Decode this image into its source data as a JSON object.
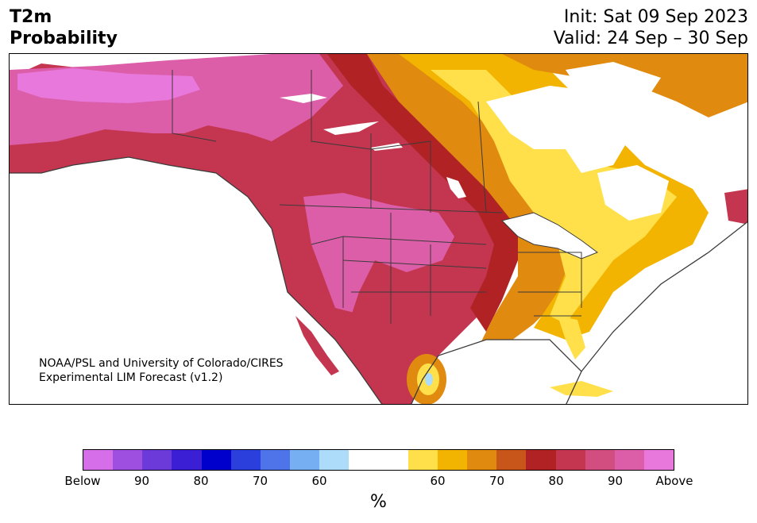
{
  "header": {
    "title_line1": "T2m",
    "title_line2": "Probability",
    "init": "Init: Sat 09 Sep 2023",
    "valid": "Valid: 24 Sep – 30 Sep"
  },
  "credit": {
    "line1": "NOAA/PSL and University of Colorado/CIRES",
    "line2": "Experimental LIM Forecast (v1.2)"
  },
  "colorbar": {
    "colors": [
      "#d56ee8",
      "#9e4fe0",
      "#6b3ad8",
      "#3a1fd4",
      "#0000cc",
      "#2a3fdc",
      "#4f74ea",
      "#76b0f2",
      "#acdcfa",
      "#ffffff",
      "#ffffff",
      "#ffe04a",
      "#f2b400",
      "#e08a10",
      "#c8561a",
      "#b02224",
      "#c43650",
      "#d24e80",
      "#dc5ea8",
      "#e878dc"
    ],
    "tick_labels": [
      "Below",
      "90",
      "80",
      "70",
      "60",
      "60",
      "70",
      "80",
      "90",
      "Above"
    ],
    "unit": "%"
  },
  "map": {
    "region": "North America",
    "legend_colors": {
      "above_100": "#e878dc",
      "above_90": "#dc5ea8",
      "above_80": "#c43650",
      "above_70": "#b02224",
      "above_60": "#e08a10",
      "above_50": "#f2b400",
      "above_40": "#ffe04a",
      "below_60": "#acdcfa",
      "neutral": "#ffffff",
      "water": "#ffffff",
      "border": "#3b3b3b"
    }
  }
}
